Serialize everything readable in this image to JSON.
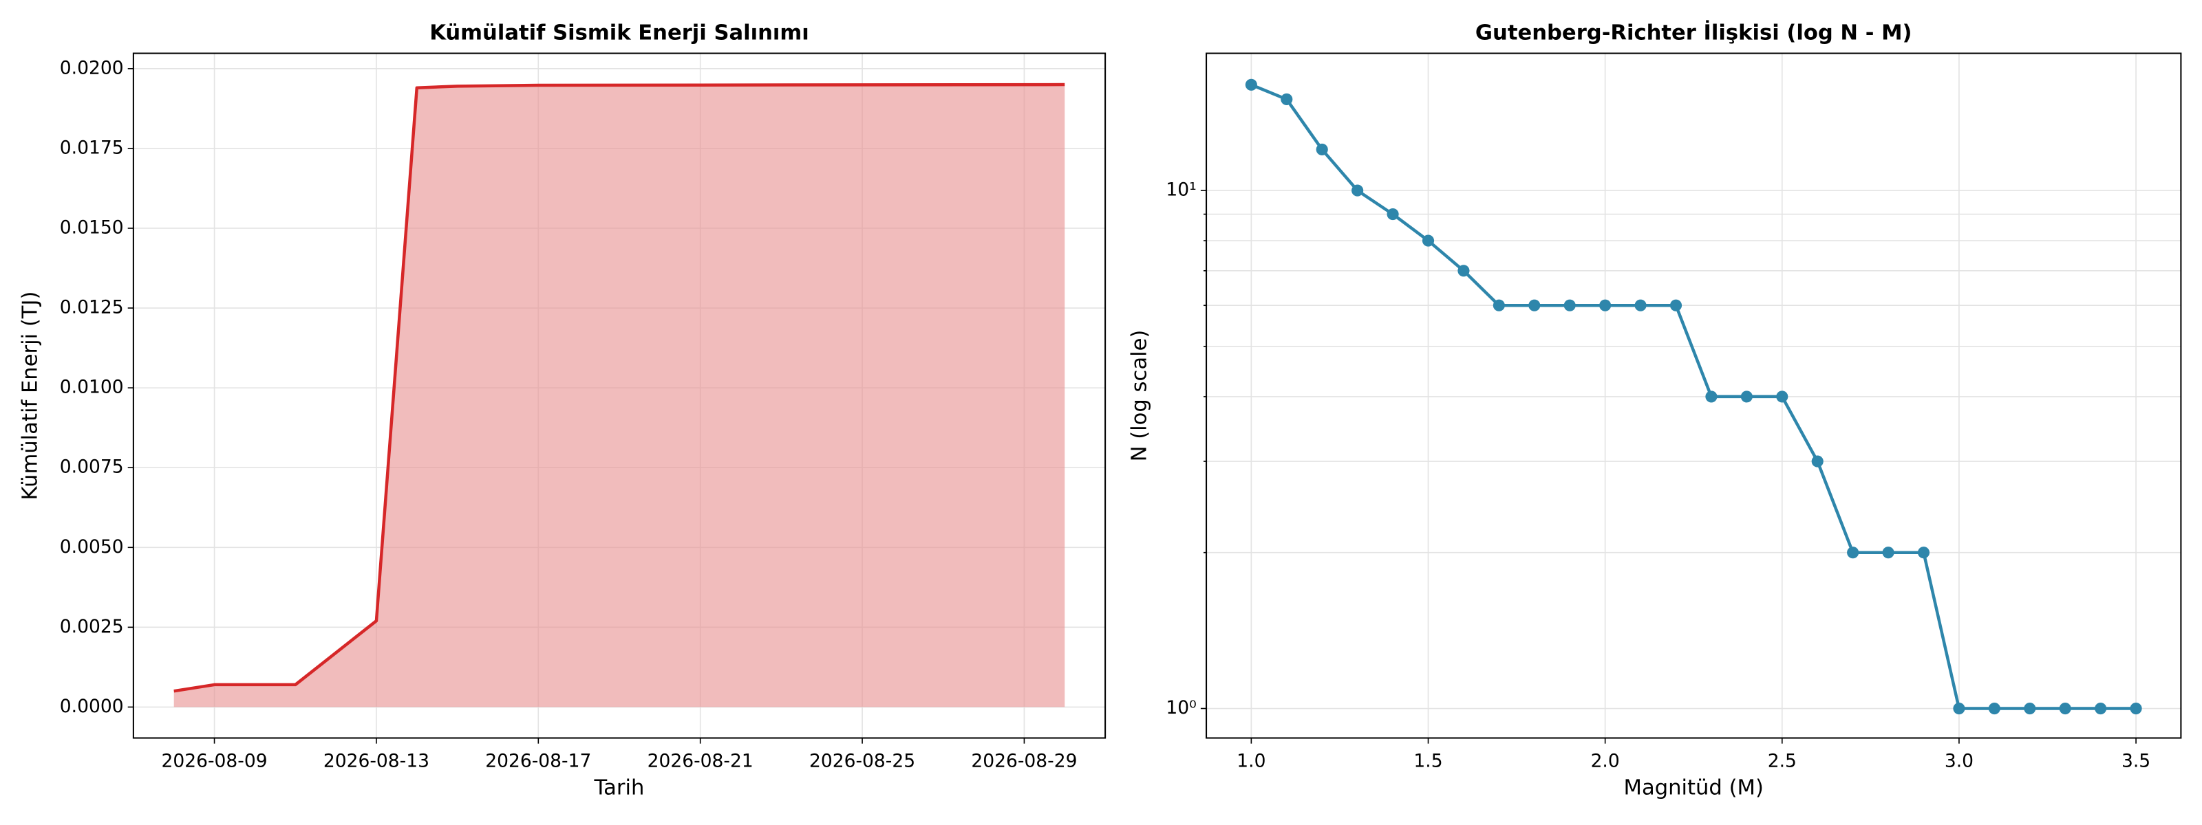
{
  "chart_data": [
    {
      "type": "area",
      "title": "Kümülatif Sismik Enerji Salınımı",
      "xlabel": "Tarih",
      "ylabel": "Kümülatif Enerji (TJ)",
      "x": [
        "2026-08-08",
        "2026-08-09",
        "2026-08-11",
        "2026-08-13",
        "2026-08-14",
        "2026-08-15",
        "2026-08-17",
        "2026-08-30"
      ],
      "values": [
        0.0005,
        0.0007,
        0.0007,
        0.0027,
        0.0194,
        0.01945,
        0.01948,
        0.0195
      ],
      "color": "#d62728",
      "fill_color": "#e89090",
      "xlim": [
        "2026-08-07",
        "2026-08-31"
      ],
      "xticks": [
        "2026-08-09",
        "2026-08-13",
        "2026-08-17",
        "2026-08-21",
        "2026-08-25",
        "2026-08-29"
      ],
      "ylim": [
        -0.00097,
        0.02048
      ],
      "yticks": [
        {
          "value": 0,
          "label": "0.0000"
        },
        {
          "value": 0.0025,
          "label": "0.0025"
        },
        {
          "value": 0.005,
          "label": "0.0050"
        },
        {
          "value": 0.0075,
          "label": "0.0075"
        },
        {
          "value": 0.01,
          "label": "0.0100"
        },
        {
          "value": 0.0125,
          "label": "0.0125"
        },
        {
          "value": 0.015,
          "label": "0.0150"
        },
        {
          "value": 0.0175,
          "label": "0.0175"
        },
        {
          "value": 0.02,
          "label": "0.0200"
        }
      ],
      "grid": true
    },
    {
      "type": "line",
      "title": "Gutenberg-Richter İlişkisi (log N - M)",
      "xlabel": "Magnitüd (M)",
      "ylabel": "N (log scale)",
      "x": [
        1.0,
        1.1,
        1.2,
        1.3,
        1.4,
        1.5,
        1.6,
        1.7,
        1.8,
        1.9,
        2.0,
        2.1,
        2.2,
        2.3,
        2.4,
        2.5,
        2.6,
        2.7,
        2.8,
        2.9,
        3.0,
        3.1,
        3.2,
        3.3,
        3.4,
        3.5
      ],
      "values": [
        16,
        15,
        12,
        10,
        9,
        8,
        7,
        6,
        6,
        6,
        6,
        6,
        6,
        4,
        4,
        4,
        3,
        2,
        2,
        2,
        1,
        1,
        1,
        1,
        1,
        1
      ],
      "color": "#2e86ab",
      "markers": true,
      "xlim": [
        0.873,
        3.627
      ],
      "xticks": [
        {
          "value": 1,
          "label": "1.0"
        },
        {
          "value": 1.5,
          "label": "1.5"
        },
        {
          "value": 2,
          "label": "2.0"
        },
        {
          "value": 2.5,
          "label": "2.5"
        },
        {
          "value": 3,
          "label": "3.0"
        },
        {
          "value": 3.5,
          "label": "3.5"
        }
      ],
      "ylim": [
        0.877,
        18.4
      ],
      "ylog": true,
      "yticks": [
        {
          "value": 1,
          "label": "10⁰"
        },
        {
          "value": 10,
          "label": "10¹"
        }
      ],
      "yminorticks": [
        2,
        3,
        4,
        5,
        6,
        7,
        8,
        9
      ],
      "grid": true
    }
  ]
}
